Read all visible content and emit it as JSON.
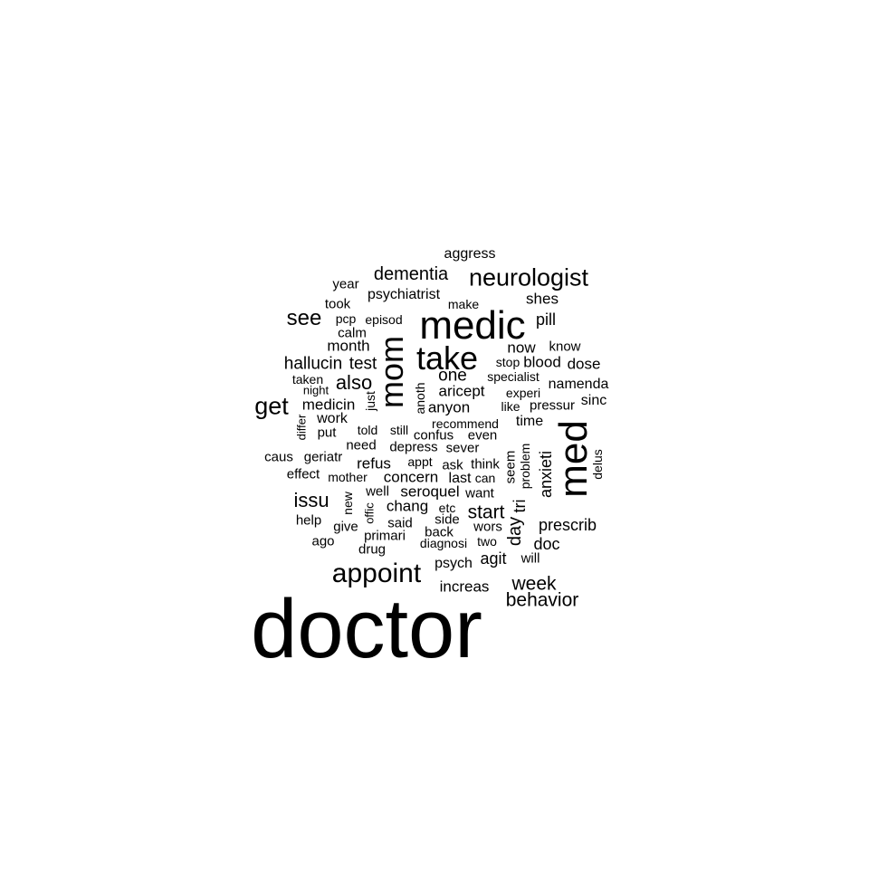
{
  "words": [
    "doctor",
    "medic",
    "med",
    "mom",
    "take",
    "appoint",
    "neurologist",
    "get",
    "see",
    "dementia",
    "issu",
    "also",
    "behavior",
    "week",
    "start",
    "aggress",
    "psychiatrist",
    "shes",
    "year",
    "took",
    "make",
    "pcp",
    "episod",
    "pill",
    "calm",
    "month",
    "now",
    "know",
    "hallucin",
    "test",
    "one",
    "stop",
    "blood",
    "dose",
    "taken",
    "specialist",
    "night",
    "anoth",
    "aricept",
    "experi",
    "namenda",
    "just",
    "medicin",
    "anyon",
    "like",
    "pressur",
    "sinc",
    "work",
    "recommend",
    "time",
    "differ",
    "put",
    "told",
    "still",
    "confus",
    "even",
    "need",
    "depress",
    "sever",
    "caus",
    "geriatr",
    "appt",
    "refus",
    "ask",
    "think",
    "problem",
    "anxieti",
    "delus",
    "effect",
    "mother",
    "concern",
    "last",
    "can",
    "seem",
    "well",
    "seroquel",
    "want",
    "new",
    "chang",
    "tri",
    "help",
    "offic",
    "etc",
    "side",
    "day",
    "prescrib",
    "give",
    "said",
    "back",
    "wors",
    "ago",
    "primari",
    "diagnosi",
    "two",
    "doc",
    "drug",
    "agit",
    "will",
    "psych",
    "increas"
  ]
}
